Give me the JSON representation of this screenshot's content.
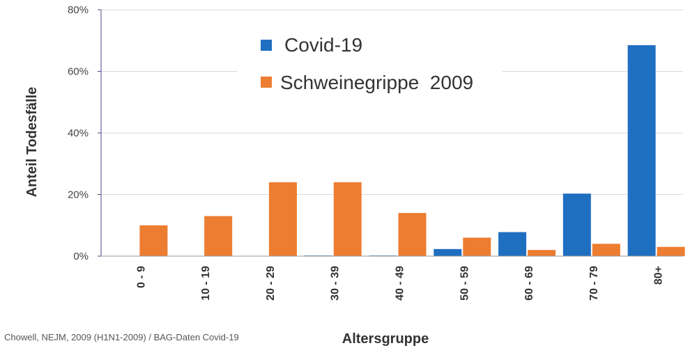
{
  "chart_data": {
    "type": "bar",
    "categories": [
      "0 - 9",
      "10 - 19",
      "20 - 29",
      "30 - 39",
      "40 - 49",
      "50 - 59",
      "60 - 69",
      "70 - 79",
      "80+"
    ],
    "series": [
      {
        "name": "Covid-19",
        "color": "#1F6FC1",
        "values": [
          0,
          0,
          0,
          0.2,
          0.2,
          2.3,
          7.8,
          20.3,
          68.5
        ]
      },
      {
        "name": "Schweinegrippe  2009",
        "color": "#ED7D31",
        "values": [
          10,
          13,
          24,
          24,
          14,
          6,
          2,
          4,
          3
        ]
      }
    ],
    "ylabel": "Anteil Todesfälle",
    "xlabel": "Altersgruppe",
    "ylim": [
      0,
      80
    ],
    "yticks": [
      0,
      20,
      40,
      60,
      80
    ],
    "ytick_labels": [
      "0%",
      "20%",
      "40%",
      "60%",
      "80%"
    ],
    "grid": true,
    "legend_position": "top-center",
    "source_note": "Chowell, NEJM, 2009 (H1N1-2009) / BAG-Daten Covid-19"
  }
}
